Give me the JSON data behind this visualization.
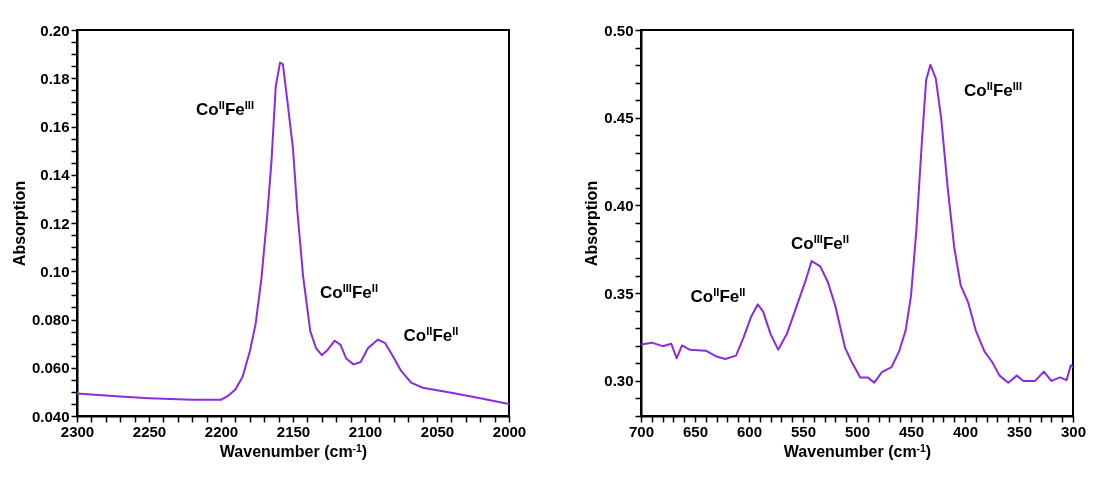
{
  "chart_data": [
    {
      "type": "line",
      "xlabel": "Wavenumber (cm$^{-1}$)",
      "ylabel": "Absorption",
      "xlim": [
        2300,
        2000
      ],
      "ylim": [
        0.04,
        0.2
      ],
      "xticks": [
        2300,
        {
          "value": 2290,
          "label": null
        },
        {
          "value": 2280,
          "label": null
        },
        {
          "value": 2270,
          "label": null
        },
        {
          "value": 2260,
          "label": null
        },
        2250,
        {
          "value": 2240,
          "label": null
        },
        {
          "value": 2230,
          "label": null
        },
        {
          "value": 2220,
          "label": null
        },
        {
          "value": 2210,
          "label": null
        },
        2200,
        {
          "value": 2190,
          "label": null
        },
        {
          "value": 2180,
          "label": null
        },
        {
          "value": 2170,
          "label": null
        },
        {
          "value": 2160,
          "label": null
        },
        2150,
        {
          "value": 2140,
          "label": null
        },
        {
          "value": 2130,
          "label": null
        },
        {
          "value": 2120,
          "label": null
        },
        {
          "value": 2110,
          "label": null
        },
        2100,
        {
          "value": 2090,
          "label": null
        },
        {
          "value": 2080,
          "label": null
        },
        {
          "value": 2070,
          "label": null
        },
        {
          "value": 2060,
          "label": null
        },
        2050,
        {
          "value": 2040,
          "label": null
        },
        {
          "value": 2030,
          "label": null
        },
        {
          "value": 2020,
          "label": null
        },
        {
          "value": 2010,
          "label": null
        },
        2000
      ],
      "yticks": [
        {
          "value": 0.04,
          "label": "0.040"
        },
        {
          "value": 0.045,
          "label": null
        },
        {
          "value": 0.05,
          "label": null
        },
        {
          "value": 0.055,
          "label": null
        },
        {
          "value": 0.06,
          "label": "0.060"
        },
        {
          "value": 0.065,
          "label": null
        },
        {
          "value": 0.07,
          "label": null
        },
        {
          "value": 0.075,
          "label": null
        },
        {
          "value": 0.08,
          "label": "0.080"
        },
        {
          "value": 0.085,
          "label": null
        },
        {
          "value": 0.09,
          "label": null
        },
        {
          "value": 0.095,
          "label": null
        },
        {
          "value": 0.1,
          "label": "0.10"
        },
        {
          "value": 0.105,
          "label": null
        },
        {
          "value": 0.11,
          "label": null
        },
        {
          "value": 0.115,
          "label": null
        },
        0.12,
        {
          "value": 0.125,
          "label": null
        },
        {
          "value": 0.13,
          "label": null
        },
        {
          "value": 0.135,
          "label": null
        },
        0.14,
        {
          "value": 0.145,
          "label": null
        },
        {
          "value": 0.15,
          "label": null
        },
        {
          "value": 0.155,
          "label": null
        },
        0.16,
        {
          "value": 0.165,
          "label": null
        },
        {
          "value": 0.17,
          "label": null
        },
        {
          "value": 0.175,
          "label": null
        },
        0.18,
        {
          "value": 0.185,
          "label": null
        },
        {
          "value": 0.19,
          "label": null
        },
        {
          "value": 0.195,
          "label": null
        },
        {
          "value": 0.2,
          "label": "0.20"
        }
      ],
      "series": [
        {
          "color": "#8a2be2",
          "x": [
            2300,
            2270,
            2250,
            2220,
            2200,
            2195,
            2190,
            2185,
            2180,
            2176,
            2172,
            2168,
            2165,
            2162,
            2159,
            2157,
            2154,
            2150,
            2147,
            2143,
            2138,
            2134,
            2130,
            2126,
            2121,
            2117,
            2113,
            2108,
            2103,
            2098,
            2091,
            2086,
            2081,
            2075,
            2068,
            2060,
            2040,
            2020,
            2000
          ],
          "values": [
            0.0493,
            0.0481,
            0.0474,
            0.0467,
            0.0467,
            0.0484,
            0.051,
            0.0563,
            0.0667,
            0.078,
            0.0966,
            0.1223,
            0.145,
            0.1765,
            0.1865,
            0.1858,
            0.171,
            0.1508,
            0.1251,
            0.098,
            0.0752,
            0.0681,
            0.0652,
            0.0674,
            0.0712,
            0.0695,
            0.0638,
            0.0614,
            0.0624,
            0.0681,
            0.0717,
            0.0702,
            0.0652,
            0.0588,
            0.0538,
            0.0517,
            0.0496,
            0.0474,
            0.045
          ]
        }
      ],
      "annotations": [
        "Co$^{II}$Fe$^{III}$",
        "Co$^{III}$Fe$^{II}$",
        "Co$^{II}$Fe$^{II}$"
      ]
    },
    {
      "type": "line",
      "xlabel": "Wavenumber (cm$^{-1}$)",
      "ylabel": "Absorption",
      "xlim": [
        700,
        300
      ],
      "ylim": [
        0.28,
        0.5
      ],
      "xticks": [
        700,
        {
          "value": 690,
          "label": null
        },
        {
          "value": 680,
          "label": null
        },
        {
          "value": 670,
          "label": null
        },
        {
          "value": 660,
          "label": null
        },
        650,
        {
          "value": 640,
          "label": null
        },
        {
          "value": 630,
          "label": null
        },
        {
          "value": 620,
          "label": null
        },
        {
          "value": 610,
          "label": null
        },
        600,
        {
          "value": 590,
          "label": null
        },
        {
          "value": 580,
          "label": null
        },
        {
          "value": 570,
          "label": null
        },
        {
          "value": 560,
          "label": null
        },
        550,
        {
          "value": 540,
          "label": null
        },
        {
          "value": 530,
          "label": null
        },
        {
          "value": 520,
          "label": null
        },
        {
          "value": 510,
          "label": null
        },
        500,
        {
          "value": 490,
          "label": null
        },
        {
          "value": 480,
          "label": null
        },
        {
          "value": 470,
          "label": null
        },
        {
          "value": 460,
          "label": null
        },
        450,
        {
          "value": 440,
          "label": null
        },
        {
          "value": 430,
          "label": null
        },
        {
          "value": 420,
          "label": null
        },
        {
          "value": 410,
          "label": null
        },
        400,
        {
          "value": 390,
          "label": null
        },
        {
          "value": 380,
          "label": null
        },
        {
          "value": 370,
          "label": null
        },
        {
          "value": 360,
          "label": null
        },
        350,
        {
          "value": 340,
          "label": null
        },
        {
          "value": 330,
          "label": null
        },
        {
          "value": 320,
          "label": null
        },
        {
          "value": 310,
          "label": null
        },
        300
      ],
      "yticks": [
        {
          "value": 0.28,
          "label": null
        },
        {
          "value": 0.29,
          "label": null
        },
        {
          "value": 0.3,
          "label": "0.30"
        },
        {
          "value": 0.31,
          "label": null
        },
        {
          "value": 0.32,
          "label": null
        },
        {
          "value": 0.33,
          "label": null
        },
        {
          "value": 0.34,
          "label": null
        },
        0.35,
        {
          "value": 0.36,
          "label": null
        },
        {
          "value": 0.37,
          "label": null
        },
        {
          "value": 0.38,
          "label": null
        },
        {
          "value": 0.39,
          "label": null
        },
        {
          "value": 0.4,
          "label": "0.40"
        },
        {
          "value": 0.41,
          "label": null
        },
        {
          "value": 0.42,
          "label": null
        },
        {
          "value": 0.43,
          "label": null
        },
        {
          "value": 0.44,
          "label": null
        },
        0.45,
        {
          "value": 0.46,
          "label": null
        },
        {
          "value": 0.47,
          "label": null
        },
        {
          "value": 0.48,
          "label": null
        },
        {
          "value": 0.49,
          "label": null
        },
        {
          "value": 0.5,
          "label": "0.50"
        }
      ],
      "series": [
        {
          "color": "#8a2be2",
          "x": [
            700,
            690,
            680,
            672,
            667,
            662,
            655,
            640,
            630,
            622,
            612,
            605,
            598,
            592,
            587,
            580,
            573,
            565,
            557,
            548,
            542,
            534,
            527,
            520,
            511,
            505,
            497,
            490,
            484,
            477,
            468,
            461,
            455,
            450,
            445,
            440,
            436,
            432,
            427,
            422,
            416,
            410,
            404,
            397,
            390,
            382,
            375,
            368,
            360,
            352,
            346,
            335,
            327,
            320,
            312,
            306,
            302,
            300
          ],
          "values": [
            0.3208,
            0.3218,
            0.3198,
            0.3212,
            0.3129,
            0.3202,
            0.3178,
            0.3172,
            0.3139,
            0.3125,
            0.3144,
            0.3248,
            0.3366,
            0.3436,
            0.3396,
            0.3267,
            0.3178,
            0.3267,
            0.3406,
            0.3564,
            0.3683,
            0.3653,
            0.3564,
            0.3426,
            0.3188,
            0.3109,
            0.302,
            0.302,
            0.299,
            0.305,
            0.3079,
            0.3168,
            0.3287,
            0.3485,
            0.3861,
            0.4356,
            0.4713,
            0.4802,
            0.4723,
            0.4495,
            0.4099,
            0.3762,
            0.3545,
            0.3446,
            0.3287,
            0.3168,
            0.3109,
            0.303,
            0.299,
            0.303,
            0.3,
            0.3,
            0.3053,
            0.3,
            0.302,
            0.3004,
            0.3089,
            0.3079
          ]
        }
      ],
      "annotations": [
        "Co$^{II}$Fe$^{III}$",
        "Co$^{III}$Fe$^{II}$",
        "Co$^{II}$Fe$^{II}$"
      ]
    }
  ]
}
